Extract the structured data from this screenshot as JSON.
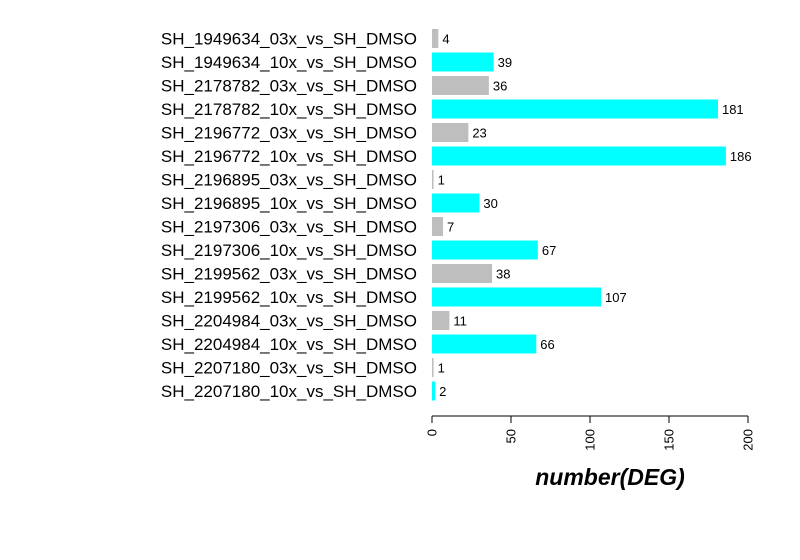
{
  "chart_data": {
    "type": "bar",
    "orientation": "horizontal",
    "categories": [
      "SH_1949634_03x_vs_SH_DMSO",
      "SH_1949634_10x_vs_SH_DMSO",
      "SH_2178782_03x_vs_SH_DMSO",
      "SH_2178782_10x_vs_SH_DMSO",
      "SH_2196772_03x_vs_SH_DMSO",
      "SH_2196772_10x_vs_SH_DMSO",
      "SH_2196895_03x_vs_SH_DMSO",
      "SH_2196895_10x_vs_SH_DMSO",
      "SH_2197306_03x_vs_SH_DMSO",
      "SH_2197306_10x_vs_SH_DMSO",
      "SH_2199562_03x_vs_SH_DMSO",
      "SH_2199562_10x_vs_SH_DMSO",
      "SH_2204984_03x_vs_SH_DMSO",
      "SH_2204984_10x_vs_SH_DMSO",
      "SH_2207180_03x_vs_SH_DMSO",
      "SH_2207180_10x_vs_SH_DMSO"
    ],
    "values": [
      4,
      39,
      36,
      181,
      23,
      186,
      1,
      30,
      7,
      67,
      38,
      107,
      11,
      66,
      1,
      2
    ],
    "value_labels": [
      "4",
      "39",
      "36",
      "181",
      "23",
      "186",
      "1",
      "30",
      "7",
      "67",
      "38",
      "107",
      "11",
      "66",
      "1",
      "2"
    ],
    "colors": [
      "#bebebe",
      "#00ffff",
      "#bebebe",
      "#00ffff",
      "#bebebe",
      "#00ffff",
      "#bebebe",
      "#00ffff",
      "#bebebe",
      "#00ffff",
      "#bebebe",
      "#00ffff",
      "#bebebe",
      "#00ffff",
      "#bebebe",
      "#00ffff"
    ],
    "xlabel": "number(DEG)",
    "xlim": [
      0,
      200
    ],
    "xticks": [
      0,
      50,
      100,
      150,
      200
    ],
    "xtick_labels": [
      "0",
      "50",
      "100",
      "150",
      "200"
    ],
    "grid": false,
    "legend": "none"
  }
}
